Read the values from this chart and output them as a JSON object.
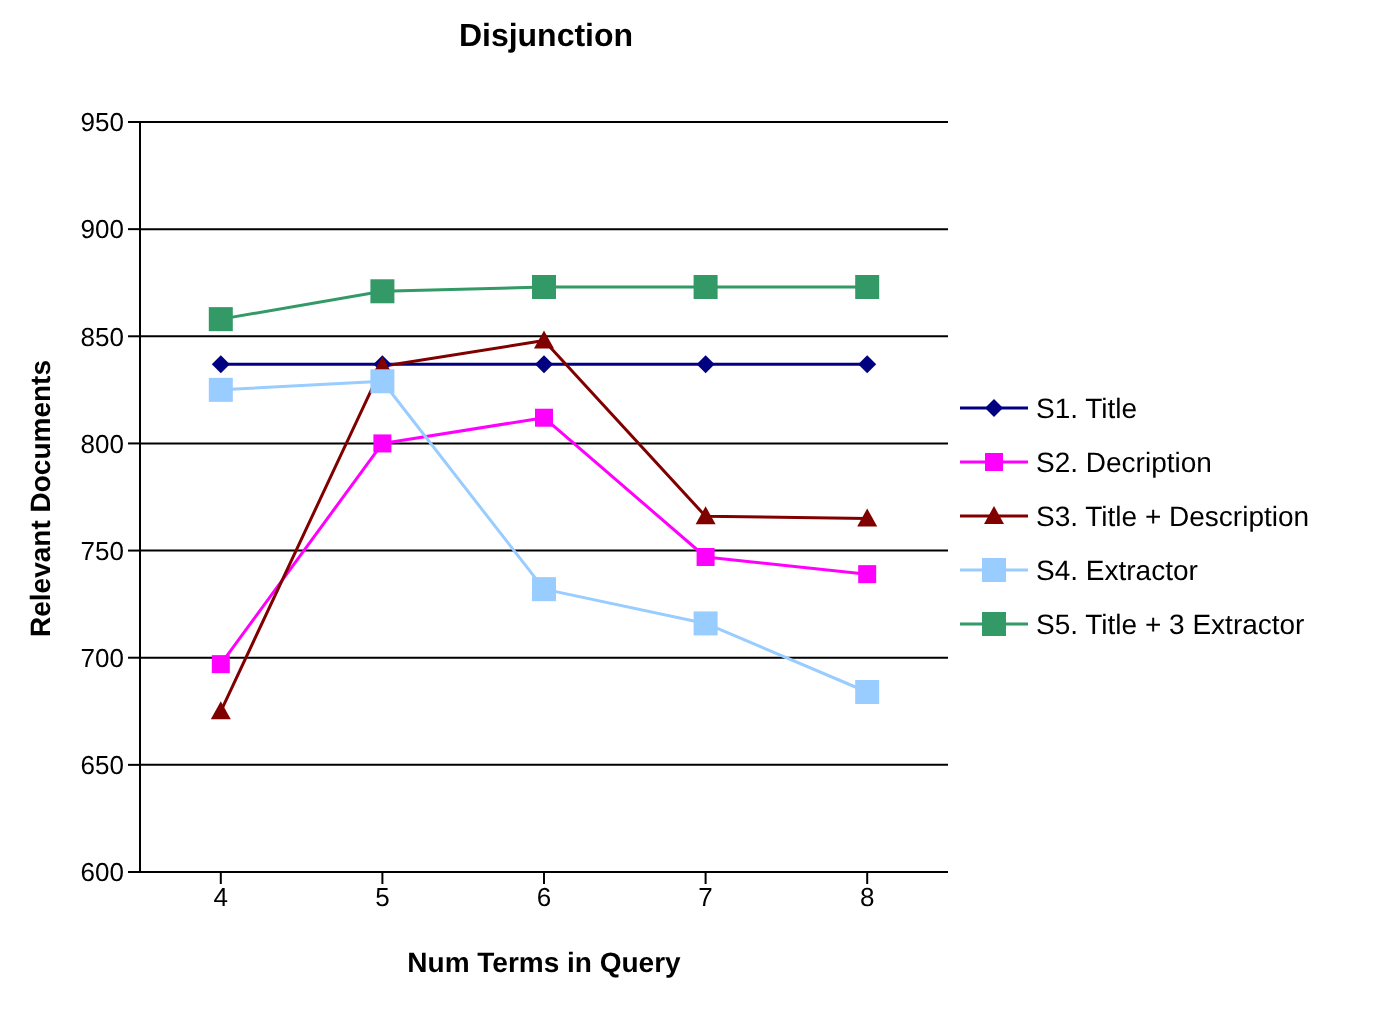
{
  "chart_data": {
    "type": "line",
    "title": "Disjunction",
    "xlabel": "Num Terms in Query",
    "ylabel": "Relevant Documents",
    "x": [
      4,
      5,
      6,
      7,
      8
    ],
    "xlim": [
      3.5,
      8.5
    ],
    "xticks": [
      4,
      5,
      6,
      7,
      8
    ],
    "ylim": [
      600,
      950
    ],
    "yticks": [
      600,
      650,
      700,
      750,
      800,
      850,
      900,
      950
    ],
    "grid": "y",
    "legend": "right",
    "series": [
      {
        "name": "S1. Title",
        "color": "#000080",
        "marker": "diamond",
        "values": [
          837,
          837,
          837,
          837,
          837
        ]
      },
      {
        "name": "S2. Decription",
        "color": "#ff00ff",
        "marker": "square",
        "values": [
          697,
          800,
          812,
          747,
          739
        ]
      },
      {
        "name": "S3. Title + Description",
        "color": "#800000",
        "marker": "triangle",
        "values": [
          675,
          836,
          848,
          766,
          765
        ]
      },
      {
        "name": "S4. Extractor",
        "color": "#99ccff",
        "marker": "square",
        "values": [
          825,
          829,
          732,
          716,
          684
        ]
      },
      {
        "name": "S5. Title + 3 Extractor",
        "color": "#339966",
        "marker": "square",
        "values": [
          858,
          871,
          873,
          873,
          873
        ]
      }
    ]
  }
}
